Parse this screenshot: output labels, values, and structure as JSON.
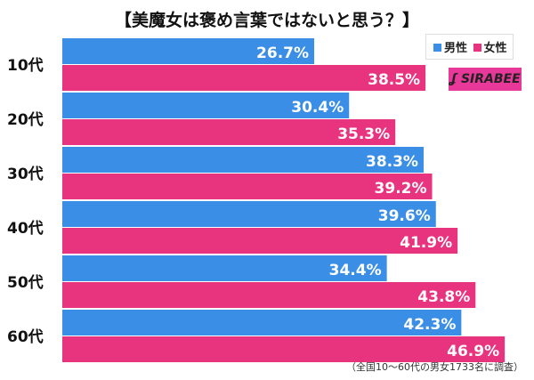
{
  "title": "【美魔女は褒め言葉ではないと思う？】",
  "note": "（全国10〜60代の男女1733名に調査）",
  "logo": "SIRABEE",
  "chart_data": {
    "type": "bar",
    "orientation": "horizontal",
    "title": "【美魔女は褒め言葉ではないと思う？】",
    "categories": [
      "10代",
      "20代",
      "30代",
      "40代",
      "50代",
      "60代"
    ],
    "series": [
      {
        "name": "男性",
        "color": "#3a8ee6",
        "values": [
          26.7,
          30.4,
          38.3,
          39.6,
          34.4,
          42.3
        ]
      },
      {
        "name": "女性",
        "color": "#e8337f",
        "values": [
          38.5,
          35.3,
          39.2,
          41.9,
          43.8,
          46.9
        ]
      }
    ],
    "unit": "%",
    "legend": "top-right",
    "grid": false
  }
}
